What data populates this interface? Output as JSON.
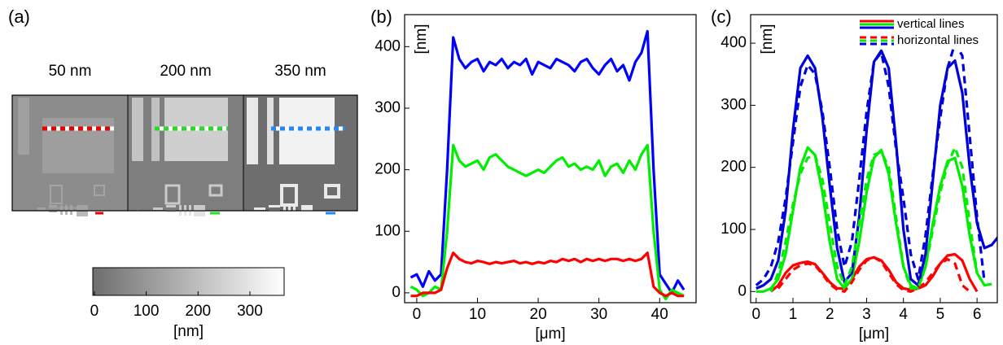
{
  "chart_data": [
    {
      "type": "image",
      "panel_label": "(a)",
      "image_titles": [
        "50 nm",
        "200 nm",
        "350 nm"
      ],
      "colorbar": {
        "clim": [
          -3,
          366
        ],
        "ticks": [
          0,
          100,
          200,
          300
        ],
        "label": "[nm]"
      }
    },
    {
      "type": "line",
      "panel_label": "(b)",
      "ylabel": "[nm]",
      "xlabel": "[μm]",
      "xlim": [
        -2,
        46
      ],
      "ylim": [
        -16,
        452
      ],
      "xticks": [
        0,
        10,
        20,
        30,
        40
      ],
      "yticks": [
        0,
        100,
        200,
        300,
        400
      ],
      "x": [
        -1,
        0,
        1,
        2,
        3,
        4,
        5,
        6,
        7,
        8,
        9,
        10,
        11,
        12,
        13,
        14,
        15,
        16,
        17,
        18,
        19,
        20,
        21,
        22,
        23,
        24,
        25,
        26,
        27,
        28,
        29,
        30,
        31,
        32,
        33,
        34,
        35,
        36,
        37,
        38,
        39,
        40,
        41,
        42,
        43,
        44
      ],
      "series": [
        {
          "color": "#0000ff",
          "dashed": false,
          "values": [
            25,
            30,
            10,
            35,
            20,
            30,
            200,
            415,
            380,
            365,
            375,
            380,
            360,
            375,
            370,
            380,
            365,
            375,
            370,
            380,
            355,
            375,
            370,
            365,
            380,
            375,
            370,
            360,
            375,
            380,
            365,
            355,
            370,
            380,
            360,
            370,
            345,
            375,
            390,
            425,
            200,
            30,
            15,
            0,
            20,
            5
          ]
        },
        {
          "color": "#00ee00",
          "dashed": false,
          "values": [
            10,
            5,
            -5,
            0,
            10,
            5,
            100,
            240,
            215,
            205,
            210,
            215,
            200,
            220,
            225,
            215,
            205,
            200,
            195,
            190,
            195,
            200,
            195,
            205,
            215,
            220,
            205,
            210,
            200,
            205,
            200,
            215,
            190,
            205,
            210,
            195,
            215,
            200,
            225,
            240,
            100,
            5,
            -10,
            5,
            0,
            -5
          ]
        },
        {
          "color": "#ff0000",
          "dashed": false,
          "values": [
            -5,
            -5,
            0,
            0,
            0,
            5,
            40,
            65,
            55,
            50,
            48,
            52,
            50,
            47,
            50,
            48,
            50,
            52,
            48,
            50,
            47,
            50,
            48,
            52,
            50,
            55,
            52,
            55,
            50,
            55,
            52,
            55,
            52,
            55,
            55,
            52,
            55,
            52,
            55,
            65,
            10,
            0,
            -5,
            0,
            -5,
            -5
          ]
        }
      ]
    },
    {
      "type": "line",
      "panel_label": "(c)",
      "ylabel": "[nm]",
      "xlabel": "[μm]",
      "xlim": [
        -0.15,
        6.55
      ],
      "ylim": [
        -18,
        446
      ],
      "xticks": [
        0,
        1,
        2,
        3,
        4,
        5,
        6
      ],
      "yticks": [
        0,
        100,
        200,
        300,
        400
      ],
      "legend": [
        {
          "label": "vertical lines",
          "dashed": false
        },
        {
          "label": "horizontal lines",
          "dashed": true
        }
      ],
      "x": [
        0,
        0.2,
        0.4,
        0.6,
        0.8,
        1.0,
        1.2,
        1.4,
        1.6,
        1.8,
        2.0,
        2.2,
        2.4,
        2.6,
        2.8,
        3.0,
        3.2,
        3.4,
        3.6,
        3.8,
        4.0,
        4.2,
        4.4,
        4.6,
        4.8,
        5.0,
        5.2,
        5.4,
        5.6,
        5.8,
        6.0,
        6.2,
        6.4,
        6.6
      ],
      "series": [
        {
          "color": "#ff0000",
          "dashed": false,
          "values": [
            null,
            null,
            0,
            10,
            30,
            42,
            46,
            48,
            44,
            30,
            15,
            5,
            5,
            20,
            40,
            52,
            55,
            50,
            35,
            15,
            5,
            3,
            5,
            10,
            25,
            45,
            58,
            60,
            50,
            20,
            0,
            null,
            null,
            null
          ]
        },
        {
          "color": "#00ee00",
          "dashed": false,
          "values": [
            0,
            0,
            5,
            20,
            60,
            130,
            200,
            232,
            220,
            160,
            80,
            20,
            5,
            20,
            80,
            160,
            215,
            228,
            190,
            110,
            40,
            10,
            5,
            40,
            110,
            170,
            210,
            215,
            170,
            90,
            30,
            10,
            12,
            null
          ]
        },
        {
          "color": "#0000dd",
          "dashed": false,
          "values": [
            5,
            10,
            20,
            50,
            130,
            260,
            360,
            380,
            360,
            280,
            170,
            70,
            15,
            30,
            120,
            260,
            370,
            388,
            360,
            240,
            100,
            20,
            10,
            60,
            180,
            300,
            360,
            372,
            320,
            200,
            110,
            70,
            75,
            90
          ]
        },
        {
          "color": "#ff0000",
          "dashed": true,
          "values": [
            null,
            null,
            null,
            5,
            20,
            35,
            42,
            45,
            42,
            28,
            12,
            3,
            0,
            15,
            35,
            50,
            55,
            48,
            30,
            12,
            2,
            0,
            5,
            15,
            30,
            45,
            52,
            45,
            10,
            0,
            null,
            null,
            null,
            null
          ]
        },
        {
          "color": "#00ee00",
          "dashed": true,
          "values": [
            null,
            null,
            0,
            30,
            80,
            140,
            190,
            215,
            220,
            180,
            110,
            40,
            10,
            40,
            110,
            180,
            220,
            225,
            200,
            120,
            40,
            5,
            5,
            40,
            100,
            160,
            205,
            232,
            200,
            110,
            30,
            null,
            null,
            null
          ]
        },
        {
          "color": "#0000dd",
          "dashed": true,
          "values": [
            10,
            20,
            40,
            80,
            150,
            240,
            330,
            365,
            350,
            290,
            200,
            100,
            40,
            80,
            180,
            290,
            370,
            385,
            330,
            230,
            150,
            60,
            20,
            90,
            190,
            280,
            360,
            400,
            380,
            250,
            120,
            15,
            null,
            null
          ]
        }
      ]
    }
  ]
}
